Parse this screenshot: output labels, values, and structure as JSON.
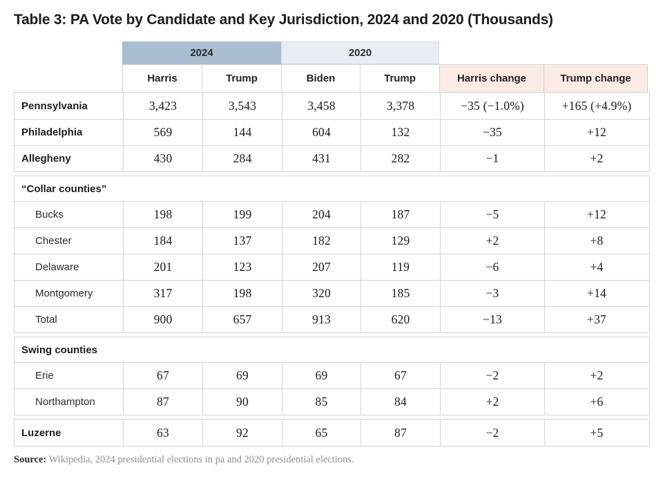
{
  "title": "Table 3: PA Vote by Candidate and Key Jurisdiction, 2024 and 2020 (Thousands)",
  "colors": {
    "band_2024": "#a9bdd0",
    "band_2020": "#e9eef4",
    "change_header_bg": "#fcebe4",
    "border": "#d4d4d4",
    "title_text": "#1c1c1c",
    "number_text": "#1a1a1a",
    "source_muted": "#8f8f8f"
  },
  "chart_data": {
    "type": "table",
    "title": "Table 3: PA Vote by Candidate and Key Jurisdiction, 2024 and 2020 (Thousands)",
    "year_groups": [
      {
        "label": "2024"
      },
      {
        "label": "2020"
      }
    ],
    "columns": [
      "Harris",
      "Trump",
      "Biden",
      "Trump",
      "Harris change",
      "Trump change"
    ],
    "column_keys": [
      "harris-2024",
      "trump-2024",
      "biden-2020",
      "trump-2020",
      "harris-change",
      "trump-change"
    ],
    "blocks": [
      {
        "section": null,
        "rows": [
          {
            "label": "Pennsylvania",
            "emphasis": true,
            "values": [
              "3,423",
              "3,543",
              "3,458",
              "3,378",
              "−35 (−1.0%)",
              "+165 (+4.9%)"
            ]
          },
          {
            "label": "Philadelphia",
            "emphasis": true,
            "values": [
              "569",
              "144",
              "604",
              "132",
              "−35",
              "+12"
            ]
          },
          {
            "label": "Allegheny",
            "emphasis": true,
            "values": [
              "430",
              "284",
              "431",
              "282",
              "−1",
              "+2"
            ]
          }
        ]
      },
      {
        "section": "“Collar counties”",
        "rows": [
          {
            "label": "Bucks",
            "emphasis": false,
            "values": [
              "198",
              "199",
              "204",
              "187",
              "−5",
              "+12"
            ]
          },
          {
            "label": "Chester",
            "emphasis": false,
            "values": [
              "184",
              "137",
              "182",
              "129",
              "+2",
              "+8"
            ]
          },
          {
            "label": "Delaware",
            "emphasis": false,
            "values": [
              "201",
              "123",
              "207",
              "119",
              "−6",
              "+4"
            ]
          },
          {
            "label": "Montgomery",
            "emphasis": false,
            "values": [
              "317",
              "198",
              "320",
              "185",
              "−3",
              "+14"
            ]
          },
          {
            "label": "Total",
            "emphasis": false,
            "values": [
              "900",
              "657",
              "913",
              "620",
              "−13",
              "+37"
            ]
          }
        ]
      },
      {
        "section": "Swing counties",
        "rows": [
          {
            "label": "Erie",
            "emphasis": false,
            "values": [
              "67",
              "69",
              "69",
              "67",
              "−2",
              "+2"
            ]
          },
          {
            "label": "Northampton",
            "emphasis": false,
            "values": [
              "87",
              "90",
              "85",
              "84",
              "+2",
              "+6"
            ]
          }
        ]
      },
      {
        "section": null,
        "rows": [
          {
            "label": "Luzerne",
            "emphasis": true,
            "values": [
              "63",
              "92",
              "65",
              "87",
              "−2",
              "+5"
            ]
          }
        ]
      }
    ],
    "source_label": "Source:",
    "source_text": " Wikipedia, 2024 presidential elections in pa and 2020 presidential elections."
  }
}
